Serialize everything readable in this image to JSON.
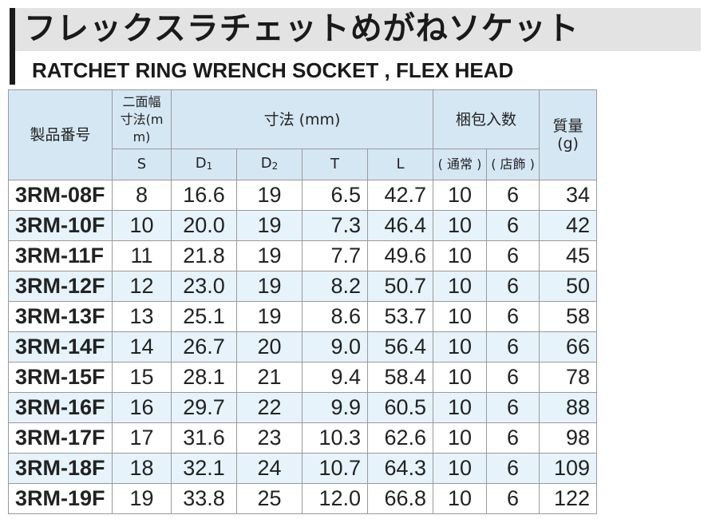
{
  "title": {
    "japanese": "フレックスラチェットめがねソケット",
    "english": "RATCHET RING WRENCH SOCKET , FLEX HEAD"
  },
  "header": {
    "product_code": "製品番号",
    "width_across_flats": "二面幅寸法(mm)",
    "dimensions": "寸法 (mm)",
    "package_qty": "梱包入数",
    "weight": "質量(g)",
    "s": "S",
    "d1": "D",
    "d1_sub": "1",
    "d2": "D",
    "d2_sub": "2",
    "t": "T",
    "l": "L",
    "normal": "( 通常 )",
    "store": "( 店飾 )"
  },
  "rows": [
    {
      "code": "3RM-08F",
      "s": "8",
      "d1": "16.6",
      "d2": "19",
      "t": "6.5",
      "l": "42.7",
      "normal": "10",
      "store": "6",
      "weight": "34"
    },
    {
      "code": "3RM-10F",
      "s": "10",
      "d1": "20.0",
      "d2": "19",
      "t": "7.3",
      "l": "46.4",
      "normal": "10",
      "store": "6",
      "weight": "42"
    },
    {
      "code": "3RM-11F",
      "s": "11",
      "d1": "21.8",
      "d2": "19",
      "t": "7.7",
      "l": "49.6",
      "normal": "10",
      "store": "6",
      "weight": "45"
    },
    {
      "code": "3RM-12F",
      "s": "12",
      "d1": "23.0",
      "d2": "19",
      "t": "8.2",
      "l": "50.7",
      "normal": "10",
      "store": "6",
      "weight": "50"
    },
    {
      "code": "3RM-13F",
      "s": "13",
      "d1": "25.1",
      "d2": "19",
      "t": "8.6",
      "l": "53.7",
      "normal": "10",
      "store": "6",
      "weight": "58"
    },
    {
      "code": "3RM-14F",
      "s": "14",
      "d1": "26.7",
      "d2": "20",
      "t": "9.0",
      "l": "56.4",
      "normal": "10",
      "store": "6",
      "weight": "66"
    },
    {
      "code": "3RM-15F",
      "s": "15",
      "d1": "28.1",
      "d2": "21",
      "t": "9.4",
      "l": "58.4",
      "normal": "10",
      "store": "6",
      "weight": "78"
    },
    {
      "code": "3RM-16F",
      "s": "16",
      "d1": "29.7",
      "d2": "22",
      "t": "9.9",
      "l": "60.5",
      "normal": "10",
      "store": "6",
      "weight": "88"
    },
    {
      "code": "3RM-17F",
      "s": "17",
      "d1": "31.6",
      "d2": "23",
      "t": "10.3",
      "l": "62.6",
      "normal": "10",
      "store": "6",
      "weight": "98"
    },
    {
      "code": "3RM-18F",
      "s": "18",
      "d1": "32.1",
      "d2": "24",
      "t": "10.7",
      "l": "64.3",
      "normal": "10",
      "store": "6",
      "weight": "109"
    },
    {
      "code": "3RM-19F",
      "s": "19",
      "d1": "33.8",
      "d2": "25",
      "t": "12.0",
      "l": "66.8",
      "normal": "10",
      "store": "6",
      "weight": "122"
    }
  ]
}
